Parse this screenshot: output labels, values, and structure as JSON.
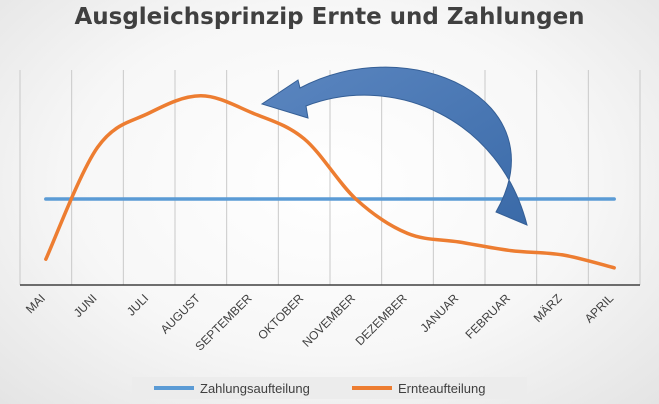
{
  "chart_data": {
    "type": "line",
    "title": "Ausgleichsprinzip Ernte und Zahlungen",
    "xlabel": "",
    "ylabel": "",
    "categories": [
      "MAI",
      "JUNI",
      "JULI",
      "AUGUST",
      "SEPTEMBER",
      "OKTOBER",
      "NOVEMBER",
      "DEZEMBER",
      "JANUAR",
      "FEBRUAR",
      "MÄRZ",
      "APRIL"
    ],
    "series": [
      {
        "name": "Zahlungsaufteilung",
        "color": "#5B9BD5",
        "values": [
          1.0,
          1.0,
          1.0,
          1.0,
          1.0,
          1.0,
          1.0,
          1.0,
          1.0,
          1.0,
          1.0,
          1.0
        ]
      },
      {
        "name": "Ernteaufteilung",
        "color": "#ED7D31",
        "values": [
          0.3,
          1.6,
          2.0,
          2.2,
          2.0,
          1.7,
          1.0,
          0.6,
          0.5,
          0.4,
          0.35,
          0.2
        ]
      }
    ],
    "ylim": [
      0,
      2.5
    ],
    "grid": "vertical",
    "legend_position": "bottom",
    "annotation": "curved-arrow-from-winter-to-summer"
  }
}
